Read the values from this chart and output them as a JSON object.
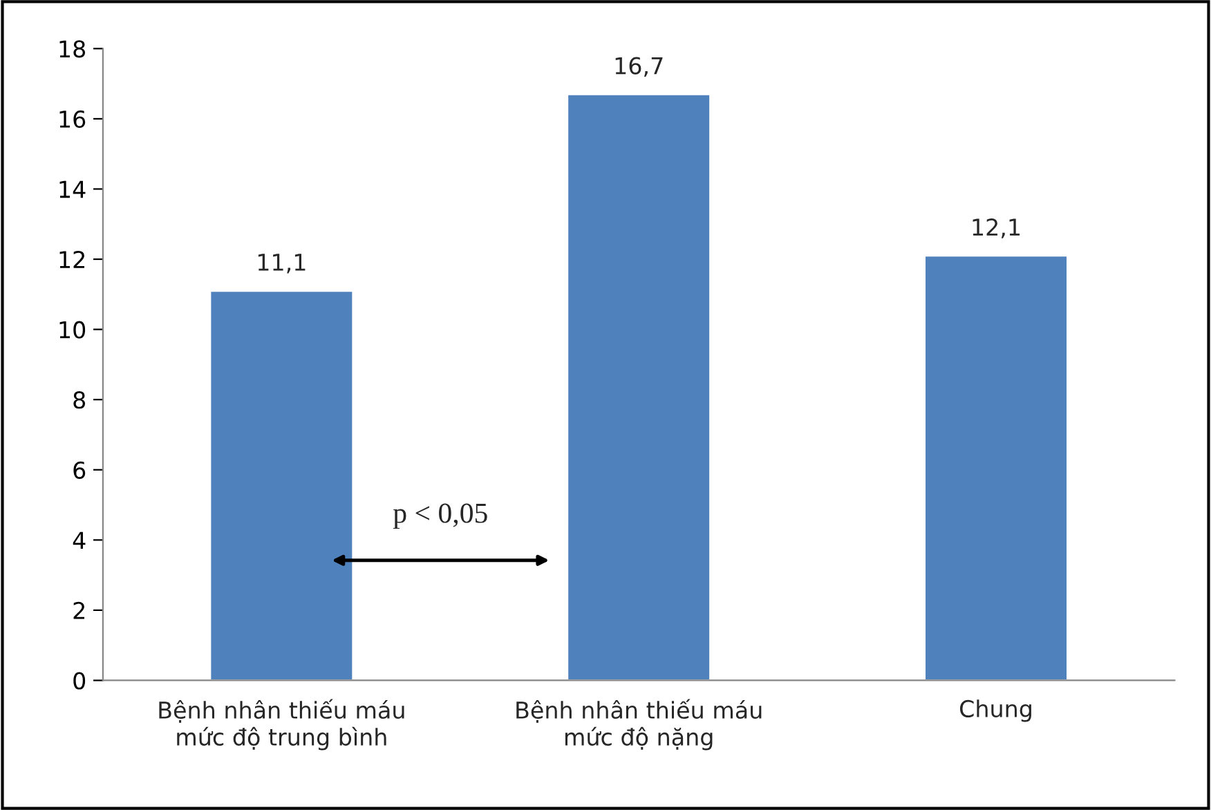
{
  "chart_data": {
    "type": "bar",
    "categories": [
      "Bệnh nhân thiếu máu\nmức độ trung bình",
      "Bệnh nhân thiếu máu\nmức độ nặng",
      "Chung"
    ],
    "values": [
      11.1,
      16.7,
      12.1
    ],
    "value_labels": [
      "11,1",
      "16,7",
      "12,1"
    ],
    "color": "#4f81bd",
    "ylim": [
      0,
      18
    ],
    "yticks": [
      0,
      2,
      4,
      6,
      8,
      10,
      12,
      14,
      16,
      18
    ],
    "annotations": [
      "p < 0,05"
    ],
    "grid": false,
    "legend": false
  }
}
